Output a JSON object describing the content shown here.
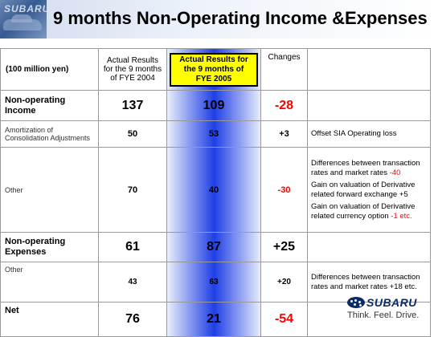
{
  "header": {
    "logo_text": "SUBARU",
    "title": "9 months Non-Operating Income &Expenses"
  },
  "table": {
    "unit": "(100 million yen)",
    "col_prev": "Actual Results for the 9 months of FYE 2004",
    "col_curr": "Actual Results for the 9 months of FYE 2005",
    "col_changes": "Changes",
    "rows": [
      {
        "label": "Non-operating Income",
        "prev": "137",
        "curr": "109",
        "change": "-28",
        "note": ""
      },
      {
        "label": "Amortization of Consolidation Adjustments",
        "prev": "50",
        "curr": "53",
        "change": "+3",
        "note": "Offset SIA Operating loss"
      },
      {
        "label": "Other",
        "prev": "70",
        "curr": "40",
        "change": "-30",
        "note1_a": "Differences between transaction rates and market rates ",
        "note1_b": "-40",
        "note2": "Gain on valuation of Derivative related forward exchange +5",
        "note3_a": "Gain on valuation of Derivative related currency option ",
        "note3_b": "-1",
        "note3_c": "  etc."
      },
      {
        "label": "Non-operating Expenses",
        "prev": "61",
        "curr": "87",
        "change": "+25",
        "note": ""
      },
      {
        "label": "Other",
        "prev": "43",
        "curr": "63",
        "change": "+20",
        "note": "Differences between transaction rates and market rates +18 etc."
      },
      {
        "label": "Net",
        "prev": "76",
        "curr": "21",
        "change": "-54",
        "note": ""
      }
    ]
  },
  "footer": {
    "brand": "SUBARU",
    "tagline": "Think. Feel. Drive."
  },
  "colors": {
    "accent_red": "#ff0000",
    "highlight_yellow": "#ffff00",
    "column_blue": "#1f3fe6",
    "brand_navy": "#0a2a6a"
  }
}
